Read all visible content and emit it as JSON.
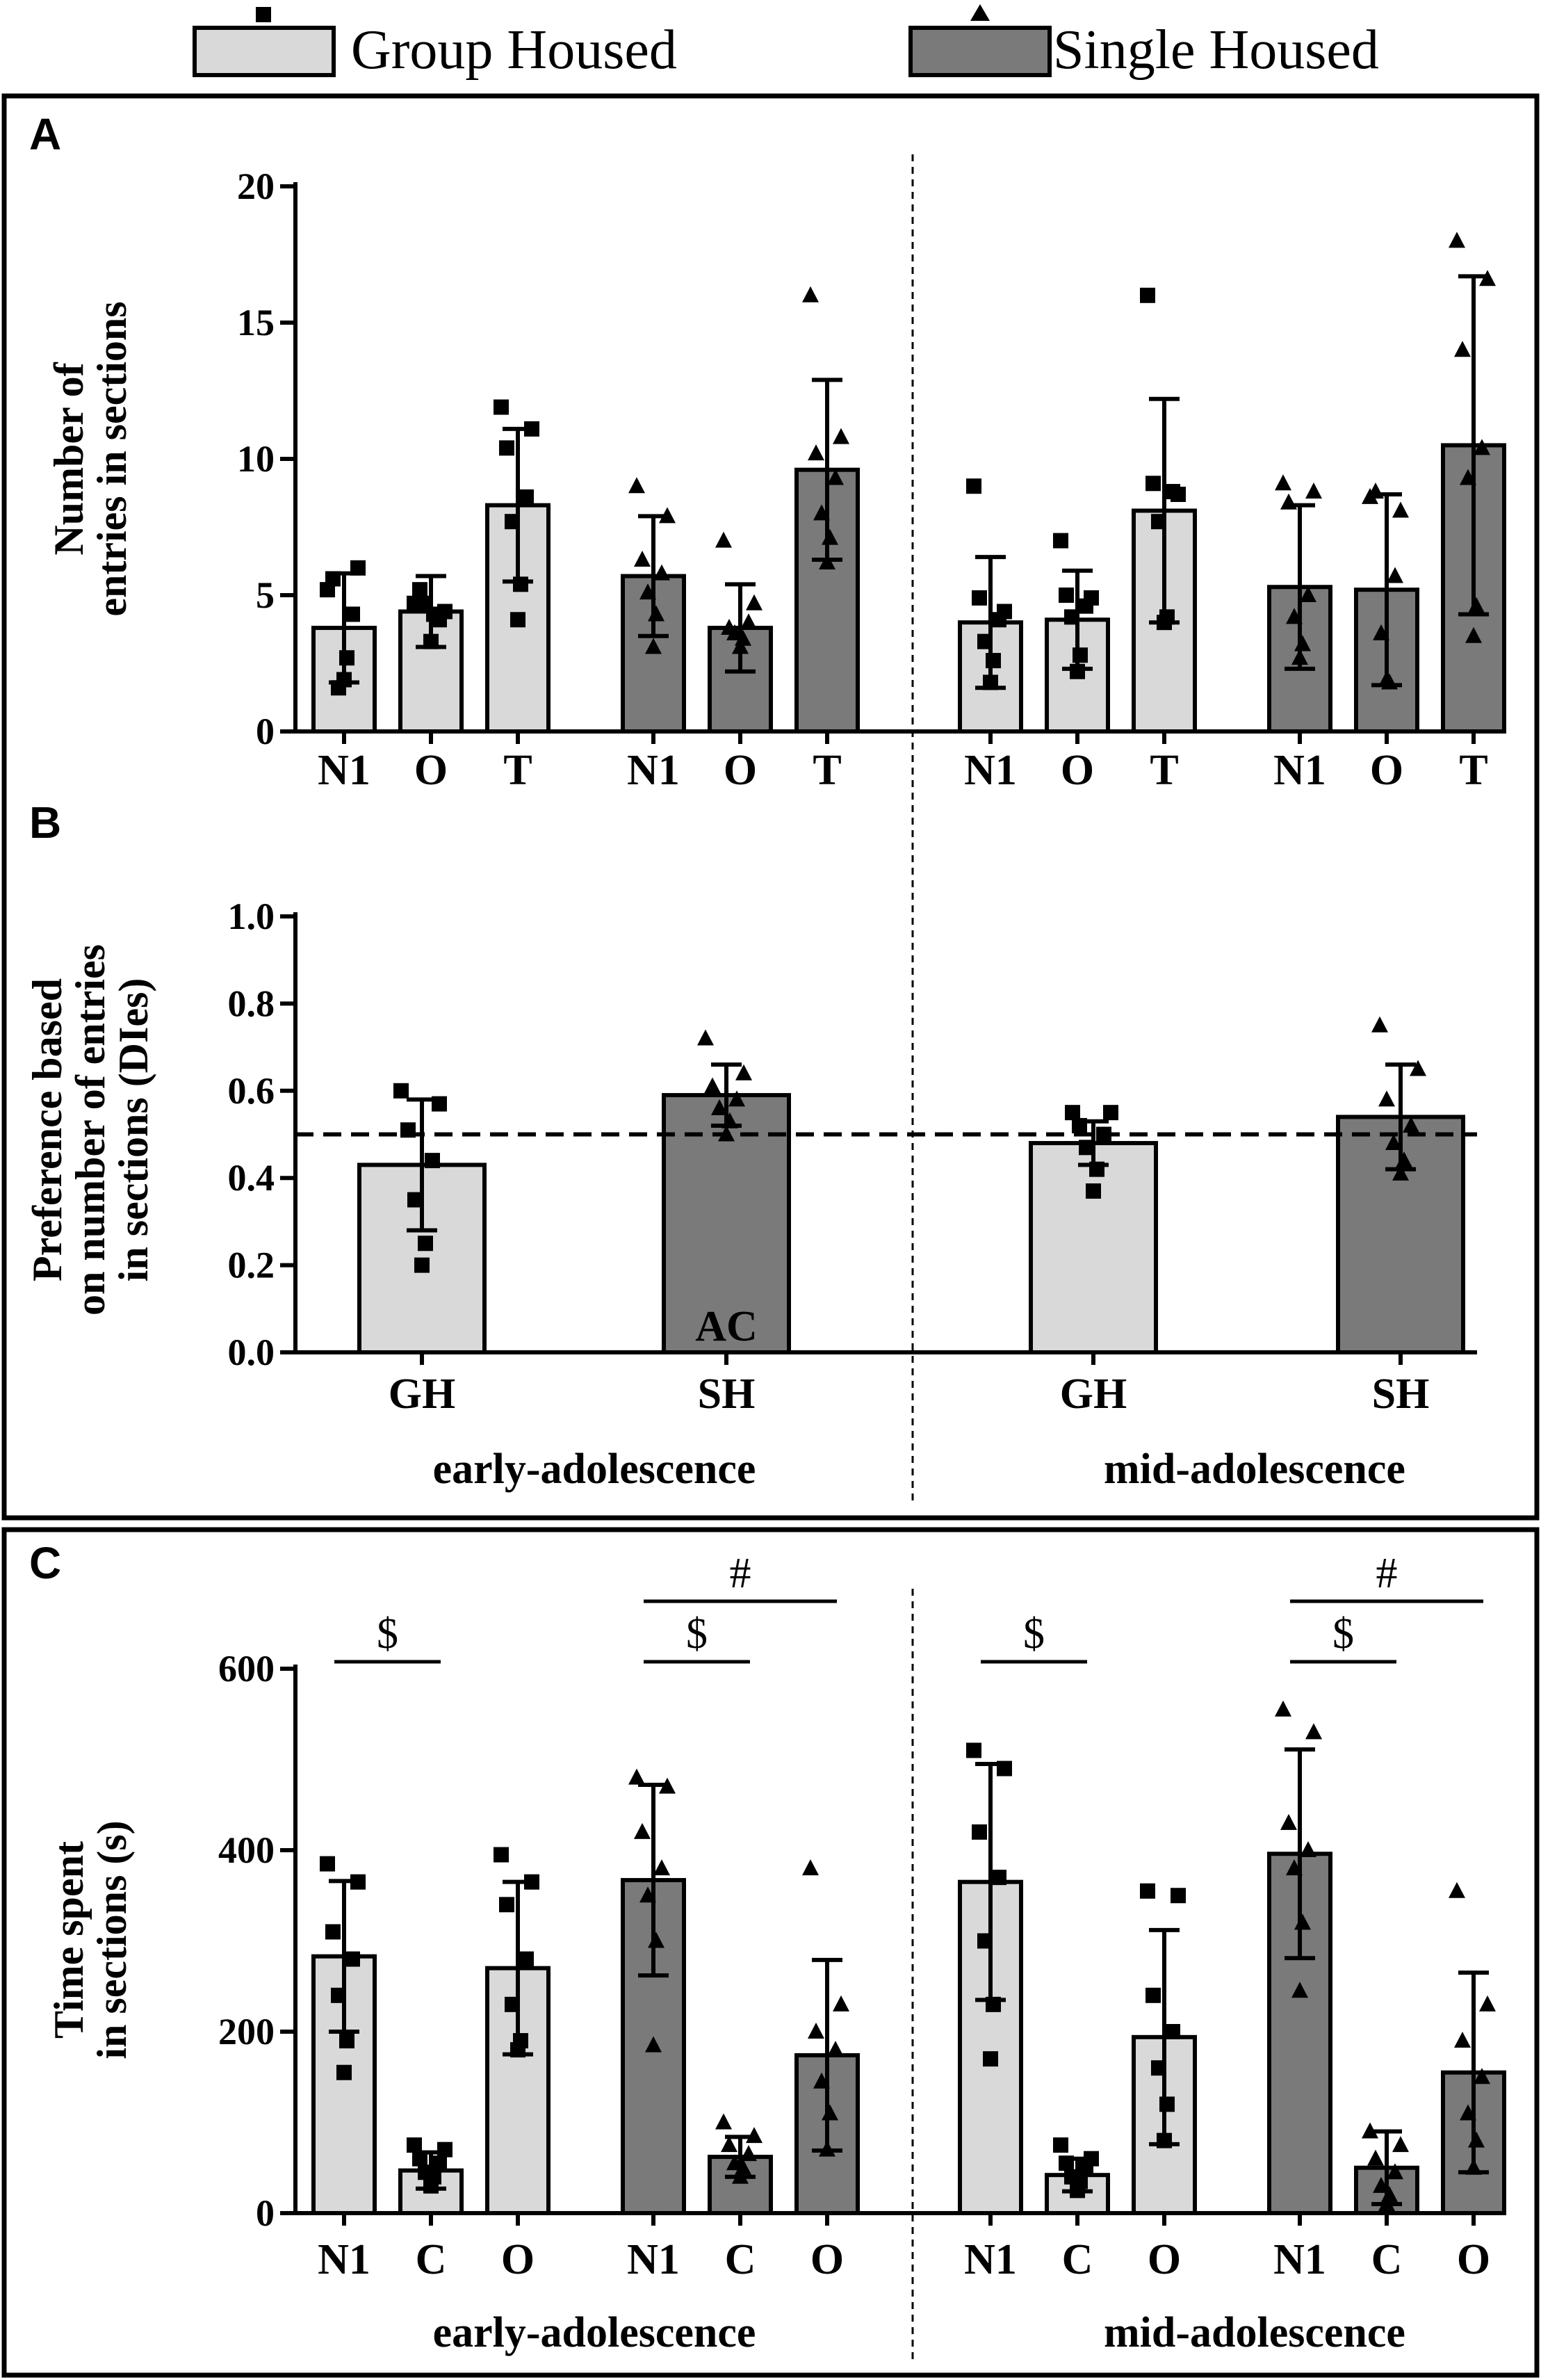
{
  "legend": [
    {
      "label": "Group Housed",
      "marker": "square-icon",
      "color": "#d9d9d9"
    },
    {
      "label": "Single Housed",
      "marker": "triangle-icon",
      "color": "#7a7a7a"
    }
  ],
  "colors": {
    "group": "#d9d9d9",
    "single": "#7a7a7a",
    "axis": "#000000"
  },
  "chart_data": [
    {
      "panel": "A",
      "type": "bar",
      "ylabel_lines": [
        "Number of",
        "entries in sections"
      ],
      "ylim": [
        0,
        20
      ],
      "yticks": [
        "0",
        "5",
        "10",
        "15",
        "20"
      ],
      "groups": [
        {
          "housing": "group",
          "period": "early-adolescence",
          "categories": [
            "N1",
            "O",
            "T"
          ],
          "means": [
            3.8,
            4.4,
            8.3
          ],
          "sd": [
            2.0,
            1.3,
            2.8
          ],
          "points": [
            [
              1.9,
              2.7,
              1.6,
              4.3,
              5.6,
              6.0,
              5.2
            ],
            [
              3.3,
              4.3,
              4.7,
              4.1,
              5.2,
              4.4,
              4.7
            ],
            [
              4.1,
              5.4,
              7.7,
              8.6,
              10.4,
              11.1,
              11.9
            ]
          ]
        },
        {
          "housing": "single",
          "period": "early-adolescence",
          "categories": [
            "N1",
            "O",
            "T"
          ],
          "means": [
            5.7,
            3.8,
            9.6
          ],
          "sd": [
            2.2,
            1.6,
            3.3
          ],
          "points": [
            [
              3.1,
              4.3,
              5.1,
              5.8,
              6.3,
              7.9,
              9.0
            ],
            [
              3.1,
              3.4,
              3.6,
              4.0,
              3.8,
              4.7,
              7.0
            ],
            [
              6.2,
              7.1,
              8.0,
              9.3,
              10.2,
              10.8,
              16.0
            ]
          ]
        },
        {
          "housing": "group",
          "period": "mid-adolescence",
          "categories": [
            "N1",
            "O",
            "T"
          ],
          "means": [
            4.0,
            4.1,
            8.1
          ],
          "sd": [
            2.4,
            1.8,
            4.1
          ],
          "points": [
            [
              1.8,
              2.6,
              3.3,
              4.1,
              4.9,
              4.4,
              9.0
            ],
            [
              2.2,
              2.8,
              4.2,
              4.6,
              5.0,
              4.9,
              7.0
            ],
            [
              4.0,
              4.2,
              7.7,
              8.8,
              9.1,
              8.7,
              16.0
            ]
          ]
        },
        {
          "housing": "single",
          "period": "mid-adolescence",
          "categories": [
            "N1",
            "O",
            "T"
          ],
          "means": [
            5.3,
            5.2,
            10.5
          ],
          "sd": [
            3.0,
            3.5,
            6.2
          ],
          "points": [
            [
              2.7,
              3.2,
              4.2,
              5.0,
              8.4,
              8.8,
              9.1
            ],
            [
              1.9,
              1.8,
              3.6,
              5.7,
              8.8,
              8.1,
              8.6
            ],
            [
              3.5,
              4.6,
              9.3,
              10.4,
              14.0,
              16.6,
              18.0
            ]
          ]
        }
      ],
      "dividers": [
        "Group Housed",
        "Single Housed"
      ]
    },
    {
      "panel": "B",
      "type": "bar",
      "ylabel_lines": [
        "Preference based",
        "on number of entries",
        "in sections (DIes)"
      ],
      "ylim": [
        0.0,
        1.0
      ],
      "yticks": [
        "0.0",
        "0.2",
        "0.4",
        "0.6",
        "0.8",
        "1.0"
      ],
      "reference_line": 0.5,
      "categories": [
        "GH",
        "SH",
        "GH",
        "SH"
      ],
      "housing": [
        "group",
        "single",
        "group",
        "single"
      ],
      "means": [
        0.43,
        0.59,
        0.48,
        0.54
      ],
      "sd": [
        0.15,
        0.07,
        0.05,
        0.12
      ],
      "points": [
        [
          0.2,
          0.25,
          0.35,
          0.44,
          0.51,
          0.57,
          0.6
        ],
        [
          0.5,
          0.53,
          0.56,
          0.58,
          0.61,
          0.64,
          0.72
        ],
        [
          0.37,
          0.42,
          0.47,
          0.5,
          0.52,
          0.55,
          0.55
        ],
        [
          0.41,
          0.44,
          0.48,
          0.52,
          0.58,
          0.65,
          0.75
        ]
      ],
      "annotation": {
        "text": "AC",
        "bar_index": 1
      },
      "period_labels": [
        "early-adolescence",
        "mid-adolescence"
      ]
    },
    {
      "panel": "C",
      "type": "bar",
      "ylabel_lines": [
        "Time spent",
        "in sections (s)"
      ],
      "ylim": [
        0,
        600
      ],
      "yticks": [
        "0",
        "200",
        "400",
        "600"
      ],
      "groups": [
        {
          "housing": "group",
          "period": "early-adolescence",
          "categories": [
            "N1",
            "C",
            "O"
          ],
          "means": [
            283,
            47,
            270
          ],
          "sd": [
            83,
            20,
            95
          ],
          "points": [
            [
              155,
              190,
              240,
              280,
              310,
              365,
              385
            ],
            [
              30,
              40,
              45,
              55,
              60,
              70,
              75
            ],
            [
              180,
              190,
              230,
              280,
              340,
              365,
              395
            ]
          ]
        },
        {
          "housing": "single",
          "period": "early-adolescence",
          "categories": [
            "N1",
            "C",
            "O"
          ],
          "means": [
            367,
            62,
            174
          ],
          "sd": [
            105,
            22,
            105
          ],
          "points": [
            [
              185,
              300,
              350,
              380,
              420,
              470,
              480
            ],
            [
              40,
              50,
              55,
              65,
              75,
              85,
              100
            ],
            [
              70,
              110,
              145,
              180,
              200,
              230,
              380
            ]
          ]
        },
        {
          "housing": "group",
          "period": "mid-adolescence",
          "categories": [
            "N1",
            "C",
            "O"
          ],
          "means": [
            365,
            42,
            194
          ],
          "sd": [
            130,
            18,
            118
          ],
          "points": [
            [
              170,
              230,
              300,
              370,
              420,
              490,
              510
            ],
            [
              25,
              35,
              40,
              50,
              55,
              60,
              75
            ],
            [
              80,
              120,
              160,
              200,
              240,
              350,
              355
            ]
          ]
        },
        {
          "housing": "single",
          "period": "mid-adolescence",
          "categories": [
            "N1",
            "C",
            "O"
          ],
          "means": [
            396,
            50,
            155
          ],
          "sd": [
            115,
            40,
            110
          ],
          "points": [
            [
              245,
              320,
              380,
              400,
              430,
              530,
              555
            ],
            [
              10,
              20,
              30,
              45,
              60,
              75,
              90
            ],
            [
              50,
              80,
              110,
              150,
              190,
              230,
              355
            ]
          ]
        }
      ],
      "significance": [
        {
          "symbol": "$",
          "group": 0,
          "from": 0,
          "to": 1
        },
        {
          "symbol": "$",
          "group": 1,
          "from": 0,
          "to": 1
        },
        {
          "symbol": "#",
          "group": 1,
          "from": 0,
          "to": 2
        },
        {
          "symbol": "$",
          "group": 2,
          "from": 0,
          "to": 1
        },
        {
          "symbol": "$",
          "group": 3,
          "from": 0,
          "to": 1
        },
        {
          "symbol": "#",
          "group": 3,
          "from": 0,
          "to": 2
        }
      ],
      "period_labels": [
        "early-adolescence",
        "mid-adolescence"
      ]
    }
  ]
}
